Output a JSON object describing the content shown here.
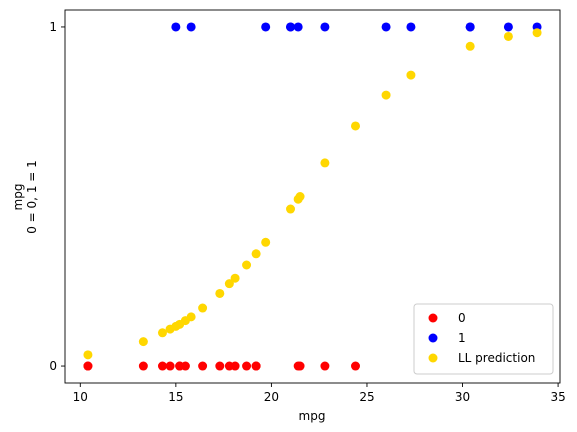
{
  "chart_data": {
    "type": "scatter",
    "title": "",
    "xlabel": "mpg",
    "ylabel_lines": [
      "mpg",
      "0 = 0, 1 = 1"
    ],
    "xlim": [
      9.2,
      35.1
    ],
    "ylim": [
      -0.05,
      1.05
    ],
    "x_ticks": [
      10,
      15,
      20,
      25,
      30,
      35
    ],
    "y_ticks": [
      0,
      1
    ],
    "grid": false,
    "legend": "lower-right",
    "series": [
      {
        "name": "0",
        "color": "#ff0000",
        "points": [
          [
            10.4,
            0
          ],
          [
            10.4,
            0
          ],
          [
            13.3,
            0
          ],
          [
            14.3,
            0
          ],
          [
            14.7,
            0
          ],
          [
            15.2,
            0
          ],
          [
            15.2,
            0
          ],
          [
            15.5,
            0
          ],
          [
            16.4,
            0
          ],
          [
            17.3,
            0
          ],
          [
            17.8,
            0
          ],
          [
            18.1,
            0
          ],
          [
            18.7,
            0
          ],
          [
            19.2,
            0
          ],
          [
            19.2,
            0
          ],
          [
            21.4,
            0
          ],
          [
            21.5,
            0
          ],
          [
            22.8,
            0
          ],
          [
            24.4,
            0
          ]
        ]
      },
      {
        "name": "1",
        "color": "#0000ff",
        "points": [
          [
            15.0,
            1
          ],
          [
            15.8,
            1
          ],
          [
            19.7,
            1
          ],
          [
            21.0,
            1
          ],
          [
            21.0,
            1
          ],
          [
            21.4,
            1
          ],
          [
            22.8,
            1
          ],
          [
            26.0,
            1
          ],
          [
            27.3,
            1
          ],
          [
            30.4,
            1
          ],
          [
            30.4,
            1
          ],
          [
            32.4,
            1
          ],
          [
            33.9,
            1
          ]
        ]
      },
      {
        "name": "LL prediction",
        "color": "#ffd700",
        "points": [
          [
            10.4,
            0.033
          ],
          [
            13.3,
            0.072
          ],
          [
            14.3,
            0.098
          ],
          [
            14.7,
            0.109
          ],
          [
            15.0,
            0.117
          ],
          [
            15.2,
            0.123
          ],
          [
            15.5,
            0.134
          ],
          [
            15.8,
            0.145
          ],
          [
            16.4,
            0.171
          ],
          [
            17.3,
            0.214
          ],
          [
            17.8,
            0.243
          ],
          [
            18.1,
            0.259
          ],
          [
            18.7,
            0.298
          ],
          [
            19.2,
            0.331
          ],
          [
            19.7,
            0.365
          ],
          [
            21.0,
            0.463
          ],
          [
            21.4,
            0.492
          ],
          [
            21.5,
            0.5
          ],
          [
            22.8,
            0.599
          ],
          [
            24.4,
            0.708
          ],
          [
            26.0,
            0.799
          ],
          [
            27.3,
            0.858
          ],
          [
            30.4,
            0.943
          ],
          [
            32.4,
            0.972
          ],
          [
            33.9,
            0.983
          ]
        ]
      }
    ]
  }
}
